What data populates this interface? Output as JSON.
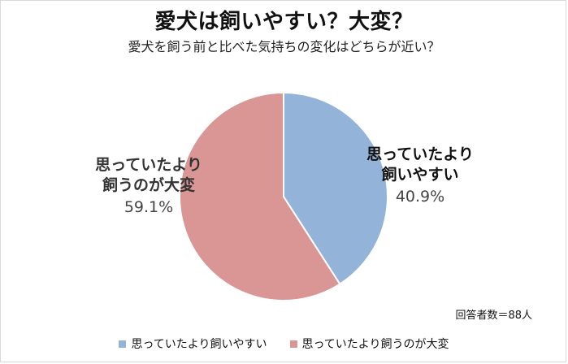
{
  "title": "愛犬は飼いやすい？大変？",
  "subtitle": "愛犬を飼う前と比べた気持ちの変化はどちらが近い？",
  "footnote": "回答者数＝88人",
  "chart_data": {
    "type": "pie",
    "slices": [
      {
        "name": "思っていたより飼いやすい",
        "label_lines": [
          "思っていたより",
          "飼いやすい"
        ],
        "pct_text": "40.9%",
        "value": 40.9,
        "color": "#94b3d9"
      },
      {
        "name": "思っていたより飼うのが大変",
        "label_lines": [
          "思っていたより",
          "飼うのが大変"
        ],
        "pct_text": "59.1%",
        "value": 59.1,
        "color": "#d99694"
      }
    ],
    "legend": {
      "placement": "bottom",
      "items": [
        "思っていたより飼いやすい",
        "思っていたより飼うのが大変"
      ]
    },
    "start_angle": "12 o'clock",
    "direction": "clockwise"
  }
}
